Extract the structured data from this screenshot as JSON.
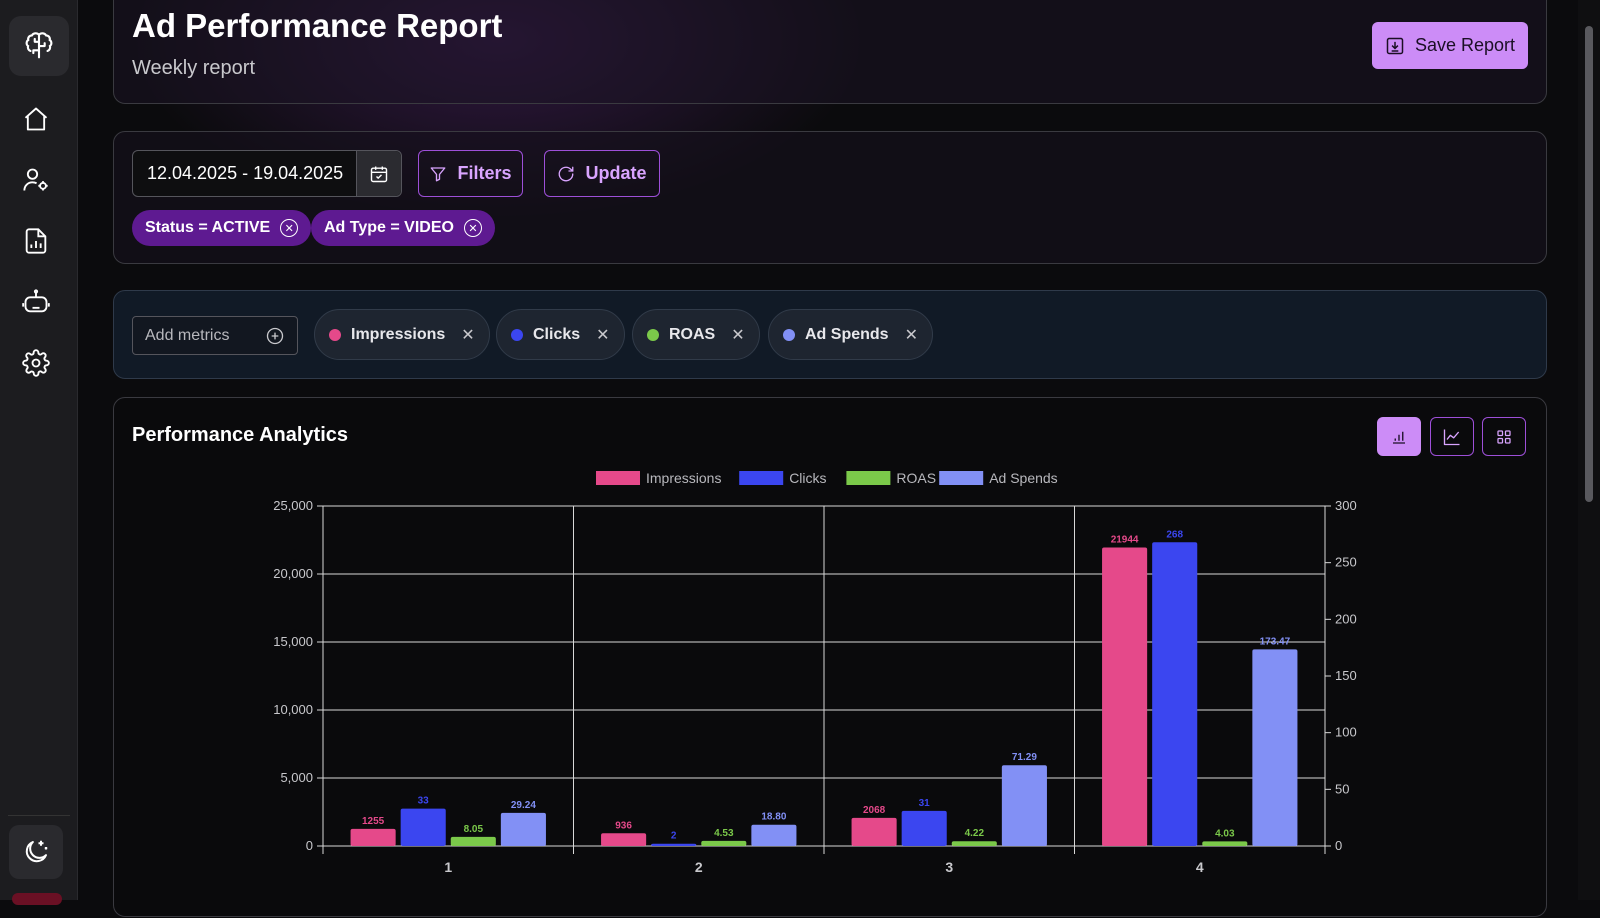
{
  "header": {
    "title": "Ad Performance Report",
    "subtitle": "Weekly report",
    "save_label": "Save Report"
  },
  "sidebar": {
    "items": [
      "home-icon",
      "user-settings-icon",
      "report-icon",
      "robot-icon",
      "gear-icon"
    ],
    "theme_icon": "moon-icon"
  },
  "filters": {
    "date_range": "12.04.2025 - 19.04.2025",
    "filters_label": "Filters",
    "update_label": "Update",
    "chips": [
      "Status = ACTIVE",
      "Ad Type = VIDEO"
    ]
  },
  "metrics": {
    "add_placeholder": "Add metrics",
    "items": [
      {
        "label": "Impressions",
        "color": "#e5498a"
      },
      {
        "label": "Clicks",
        "color": "#3b46f0"
      },
      {
        "label": "ROAS",
        "color": "#7bc94a"
      },
      {
        "label": "Ad Spends",
        "color": "#8290f5"
      }
    ]
  },
  "chart_section": {
    "title": "Performance Analytics"
  },
  "chart_data": {
    "type": "bar",
    "categories": [
      "1",
      "2",
      "3",
      "4"
    ],
    "series": [
      {
        "name": "Impressions",
        "color": "#e5498a",
        "axis": "left",
        "values": [
          1255,
          936,
          2068,
          21944
        ],
        "labels": [
          "1255",
          "936",
          "2068",
          "21944"
        ]
      },
      {
        "name": "Clicks",
        "color": "#3b46f0",
        "axis": "right",
        "values": [
          33,
          2,
          31,
          268
        ],
        "labels": [
          "33",
          "2",
          "31",
          "268"
        ]
      },
      {
        "name": "ROAS",
        "color": "#7bc94a",
        "axis": "right",
        "values": [
          8.05,
          4.53,
          4.22,
          4.03
        ],
        "labels": [
          "8.05",
          "4.53",
          "4.22",
          "4.03"
        ]
      },
      {
        "name": "Ad Spends",
        "color": "#8290f5",
        "axis": "right",
        "values": [
          29.24,
          18.8,
          71.29,
          173.47
        ],
        "labels": [
          "29.24",
          "18.80",
          "71.29",
          "173.47"
        ]
      }
    ],
    "y_left": {
      "range": [
        0,
        25000
      ],
      "ticks": [
        "0",
        "5,000",
        "10,000",
        "15,000",
        "20,000",
        "25,000"
      ],
      "tick_values": [
        0,
        5000,
        10000,
        15000,
        20000,
        25000
      ]
    },
    "y_right": {
      "range": [
        0,
        300
      ],
      "ticks": [
        "0",
        "50",
        "100",
        "150",
        "200",
        "250",
        "300"
      ],
      "tick_values": [
        0,
        50,
        100,
        150,
        200,
        250,
        300
      ]
    },
    "grid": true,
    "legend_position": "top-center"
  }
}
